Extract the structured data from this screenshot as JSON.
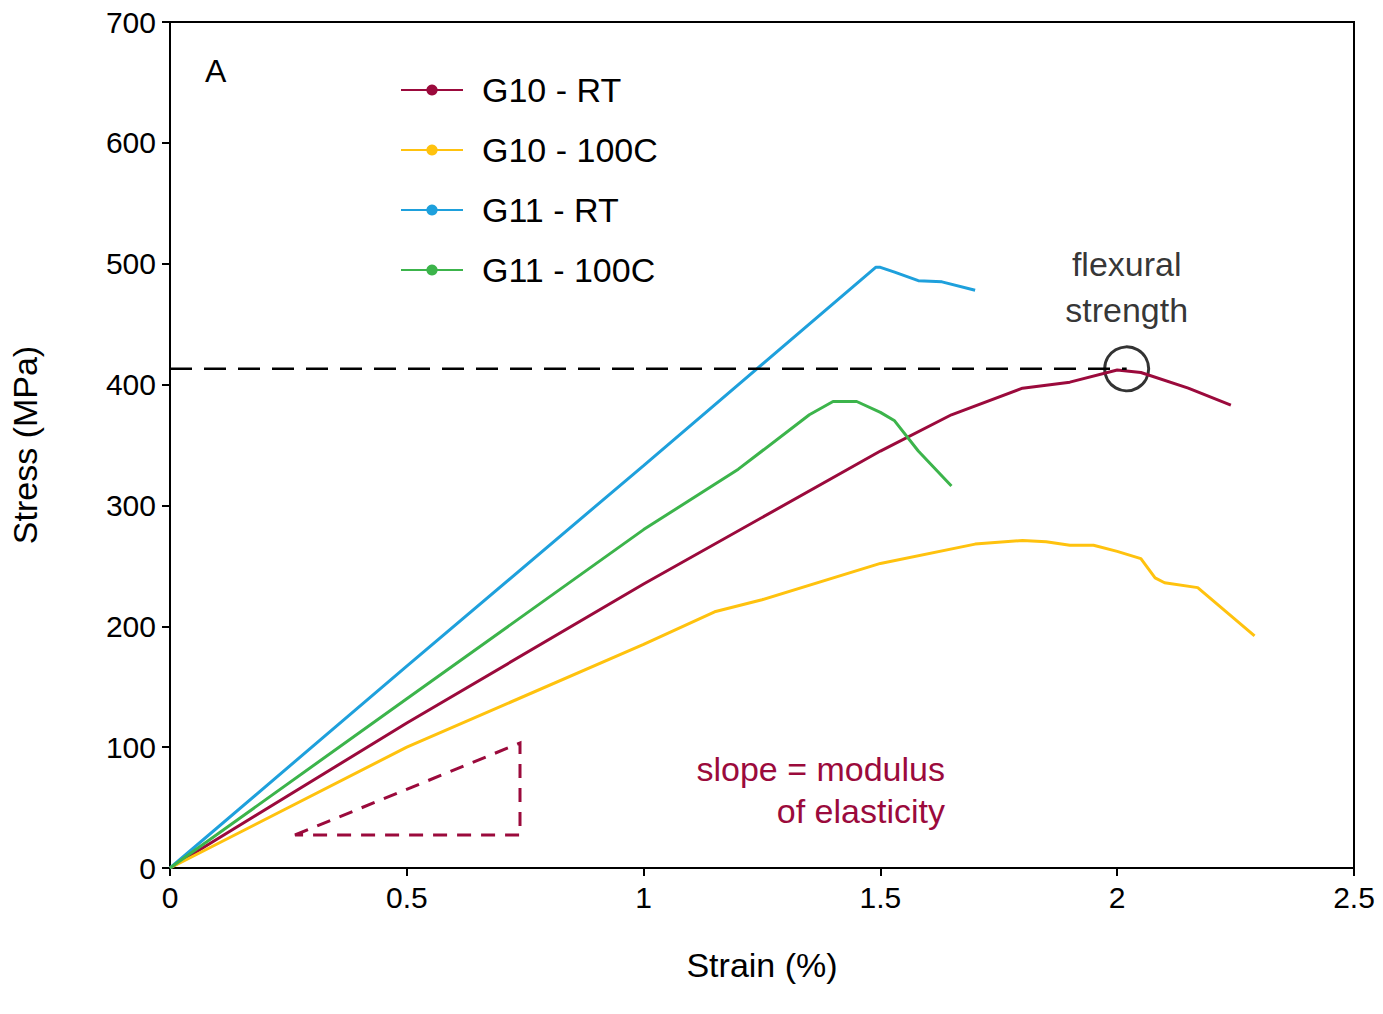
{
  "chart_data": {
    "type": "line",
    "x_label": "Strain (%)",
    "y_label": "Stress (MPa)",
    "xlim": [
      0,
      2.5
    ],
    "xticks": [
      0,
      0.5,
      1,
      1.5,
      2,
      2.5
    ],
    "ylim": [
      0,
      700
    ],
    "yticks": [
      0,
      100,
      200,
      300,
      400,
      500,
      600,
      700
    ],
    "grid": false,
    "legend": "upper left",
    "series": [
      {
        "name": "G10 - RT",
        "color": "#9b0a3c",
        "x": [
          0,
          0.5,
          1.0,
          1.5,
          1.65,
          1.8,
          1.9,
          2.0,
          2.05,
          2.15,
          2.24
        ],
        "values": [
          0,
          120,
          235,
          345,
          375,
          397,
          402,
          412,
          410,
          397,
          383
        ]
      },
      {
        "name": "G10 - 100C",
        "color": "#ffc20e",
        "x": [
          0,
          0.5,
          1.0,
          1.15,
          1.25,
          1.5,
          1.7,
          1.8,
          1.85,
          1.9,
          1.95,
          2.0,
          2.05,
          2.08,
          2.1,
          2.17,
          2.29
        ],
        "values": [
          0,
          100,
          185,
          212,
          222,
          252,
          268,
          271,
          270,
          267,
          267,
          262,
          256,
          240,
          236,
          232,
          192
        ]
      },
      {
        "name": "G11 - RT",
        "color": "#1ea0dc",
        "x": [
          0,
          0.5,
          1.0,
          1.49,
          1.5,
          1.53,
          1.58,
          1.63,
          1.7
        ],
        "values": [
          0,
          167,
          333,
          497,
          497,
          493,
          486,
          485,
          478
        ]
      },
      {
        "name": "G11 - 100C",
        "color": "#3cb44b",
        "x": [
          0,
          0.5,
          1.0,
          1.2,
          1.35,
          1.4,
          1.45,
          1.5,
          1.53,
          1.58,
          1.65
        ],
        "values": [
          0,
          140,
          280,
          330,
          375,
          386,
          386,
          377,
          370,
          345,
          316
        ]
      }
    ],
    "annotations": [
      {
        "text": "A"
      },
      {
        "text": "flexural strength",
        "x": 2.02,
        "y": 413
      },
      {
        "text": "slope = modulus of elasticity"
      }
    ]
  }
}
